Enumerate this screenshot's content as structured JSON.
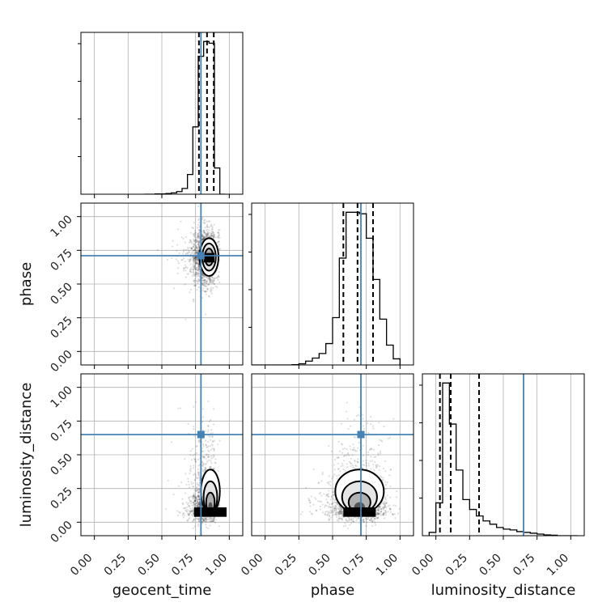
{
  "chart_data": {
    "type": "corner",
    "parameters": [
      "geocent_time",
      "phase",
      "luminosity_distance"
    ],
    "axis_range": [
      -0.1,
      1.1
    ],
    "ticks": [
      0.0,
      0.25,
      0.5,
      0.75,
      1.0
    ],
    "tick_labels": [
      "0.00",
      "0.25",
      "0.50",
      "0.75",
      "1.00"
    ],
    "grid": true,
    "colors": {
      "truth": "#4682b4",
      "hist": "#000000",
      "points": "#555555"
    },
    "truths": {
      "geocent_time": 0.79,
      "phase": 0.71,
      "luminosity_distance": 0.65
    },
    "quantiles": {
      "geocent_time": [
        0.775,
        0.835,
        0.885
      ],
      "phase": [
        0.58,
        0.685,
        0.8
      ],
      "luminosity_distance": [
        0.03,
        0.11,
        0.32
      ]
    },
    "histograms": {
      "geocent_time": {
        "edges": [
          0.37,
          0.41,
          0.45,
          0.49,
          0.53,
          0.57,
          0.61,
          0.65,
          0.69,
          0.73,
          0.77,
          0.81,
          0.85,
          0.89,
          0.93,
          0.97
        ],
        "counts": [
          0,
          0,
          0.2,
          0.2,
          0.4,
          0.8,
          1.6,
          3.5,
          12,
          41,
          84,
          93,
          92,
          16,
          0
        ]
      },
      "phase": {
        "edges": [
          -0.1,
          0.0,
          0.05,
          0.1,
          0.15,
          0.2,
          0.25,
          0.3,
          0.35,
          0.4,
          0.45,
          0.5,
          0.55,
          0.6,
          0.65,
          0.7,
          0.75,
          0.8,
          0.85,
          0.9,
          0.95,
          1.0
        ],
        "counts": [
          0,
          0,
          0,
          0,
          0,
          0.2,
          0.8,
          2.5,
          4.5,
          7.5,
          14,
          31,
          70,
          100,
          100,
          99,
          83,
          56,
          30,
          13,
          4
        ]
      },
      "luminosity_distance": {
        "edges": [
          -0.05,
          0.0,
          0.05,
          0.1,
          0.15,
          0.2,
          0.25,
          0.3,
          0.35,
          0.4,
          0.45,
          0.5,
          0.55,
          0.6,
          0.65,
          0.7,
          0.75,
          0.8,
          0.85,
          0.9,
          0.95,
          1.0,
          1.05
        ],
        "counts": [
          2,
          20,
          93,
          68,
          40,
          22,
          16,
          12,
          9,
          7,
          5,
          4,
          3.5,
          2.5,
          2,
          1.5,
          1,
          0.5,
          0.3,
          0,
          0,
          0
        ]
      }
    },
    "posterior_peaks": {
      "geocent_time|phase": [
        0.85,
        0.7
      ],
      "geocent_time|luminosity_distance": [
        0.86,
        0.08
      ],
      "phase|luminosity_distance": [
        0.7,
        0.08
      ]
    }
  }
}
